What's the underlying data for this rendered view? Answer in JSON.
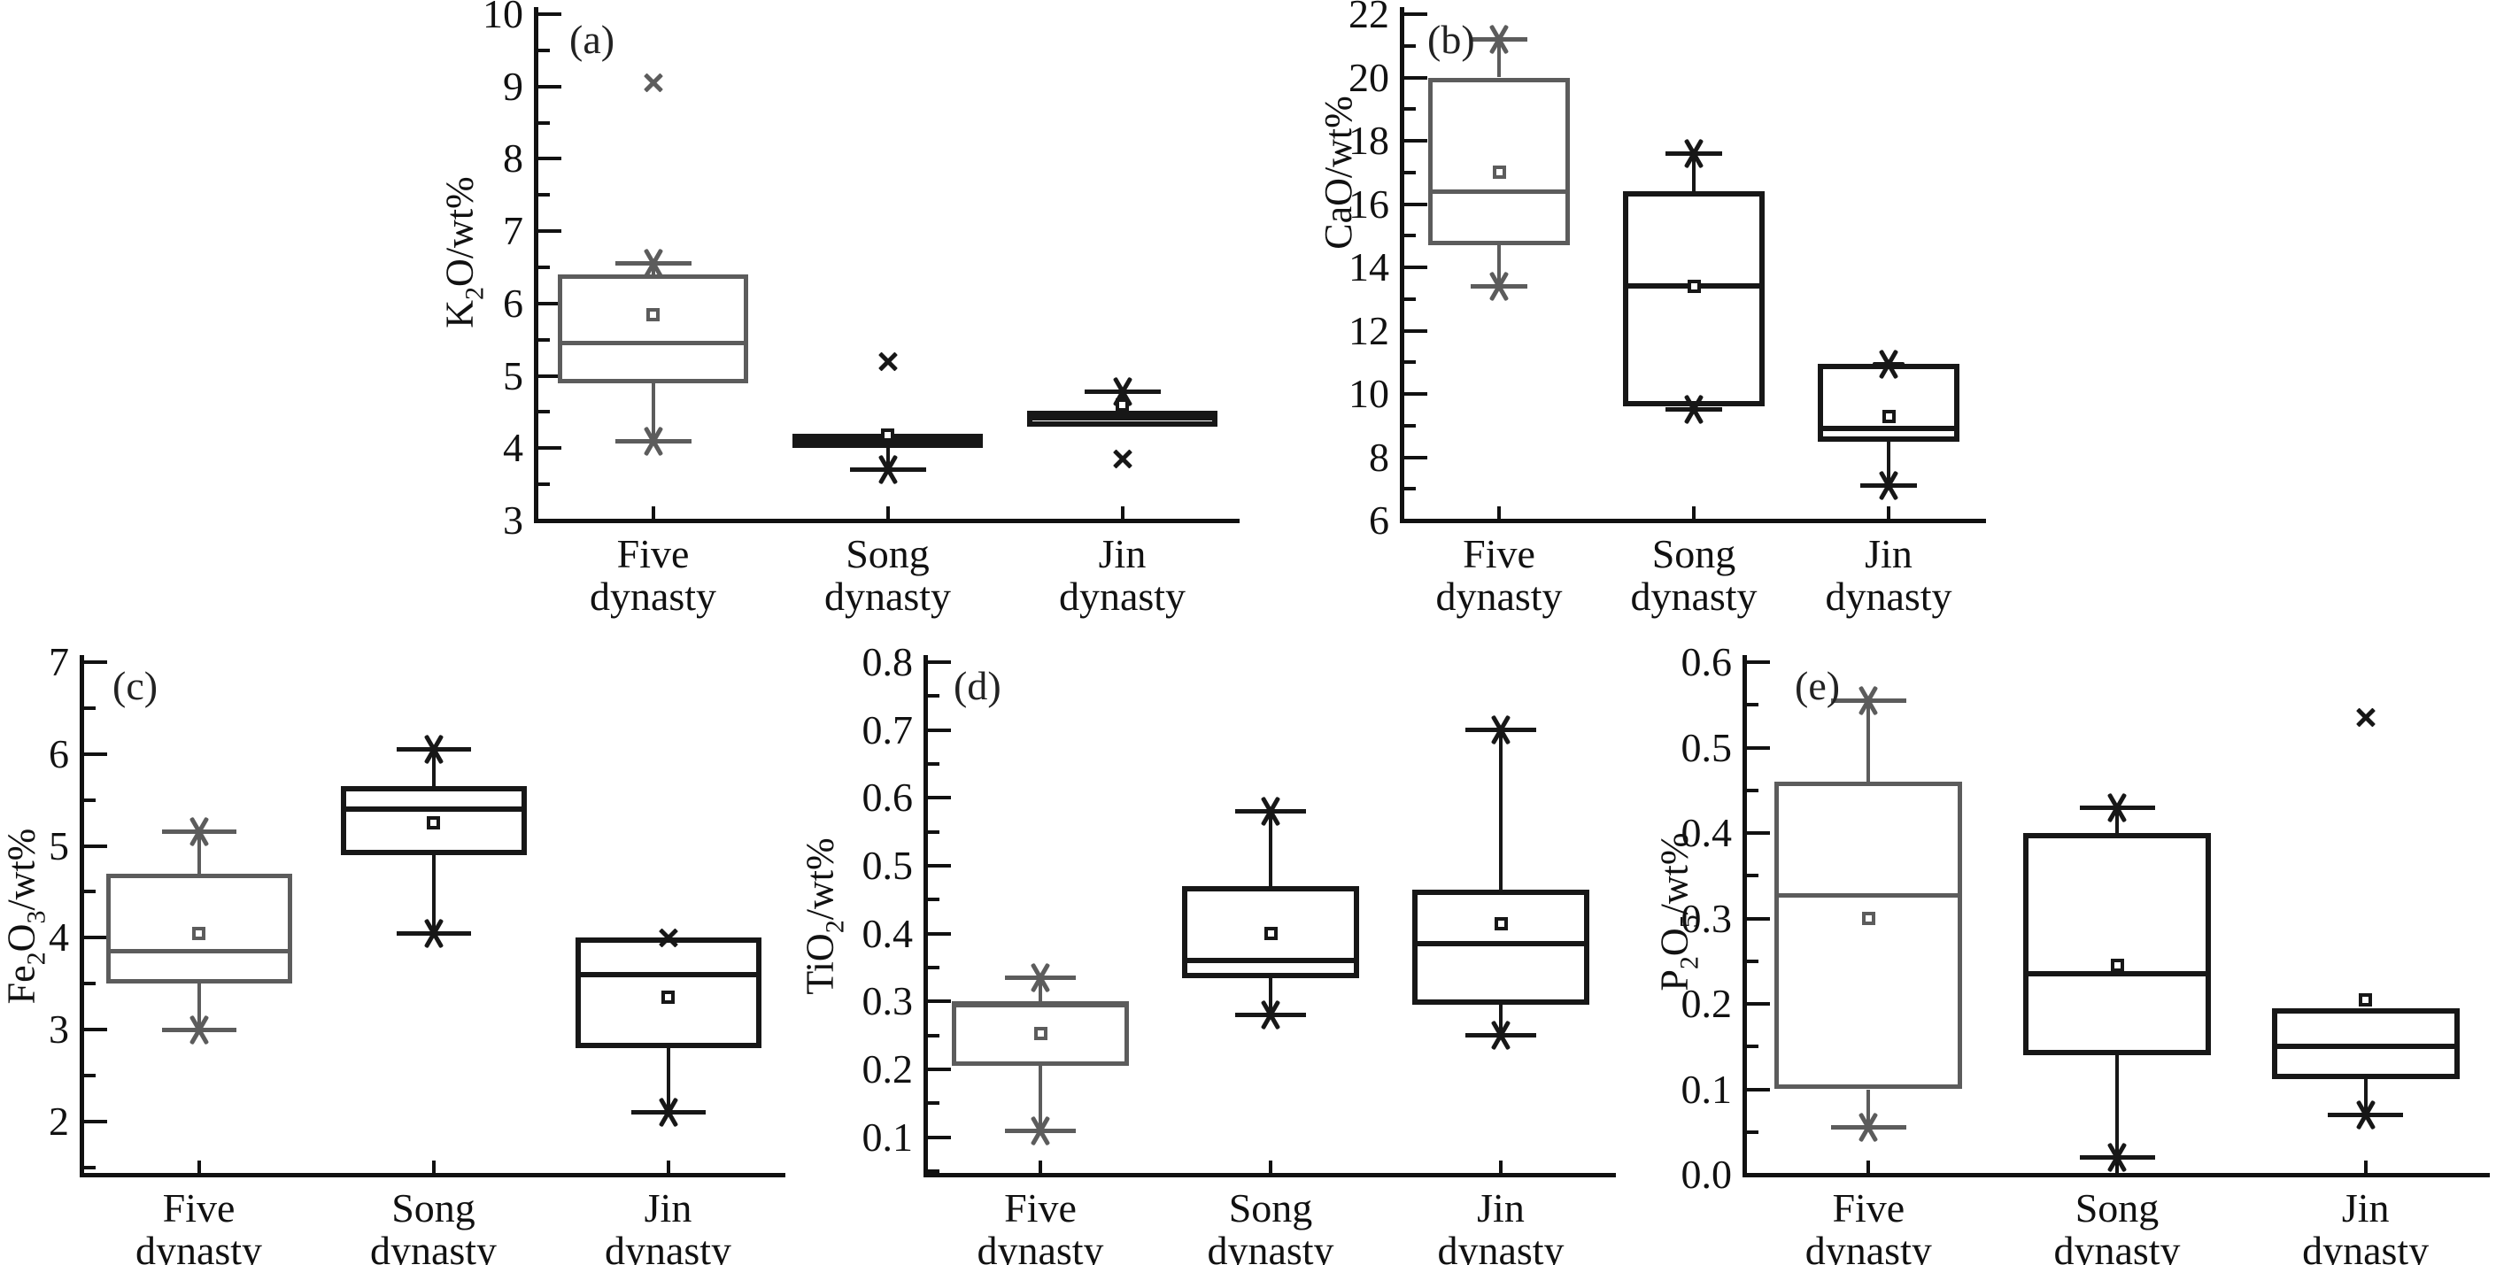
{
  "figure": {
    "background": "#ffffff"
  },
  "chart_data": {
    "type": "box",
    "title": "",
    "grid": false,
    "legend": "none",
    "categories": [
      [
        "Five",
        "dynasty"
      ],
      [
        "Song",
        "dynasty"
      ],
      [
        "Jin",
        "dynasty"
      ]
    ],
    "colors": {
      "five_dynasty_gray": "#5c5c5c",
      "song_jin_black": "#171717",
      "axis": "#111111"
    },
    "panels": [
      {
        "label": "(a)",
        "ylabel_parts": [
          {
            "t": "K"
          },
          {
            "t": "2",
            "sub": true
          },
          {
            "t": "O/wt%"
          }
        ],
        "ylim": [
          3,
          10
        ],
        "ticks": {
          "start": 3,
          "end": 10,
          "step": 1,
          "minor": 0.5,
          "decimals": 0
        },
        "series": [
          {
            "name": "Five dynasty",
            "color": "gray",
            "whislo": 4.1,
            "q1": 4.9,
            "med": 5.45,
            "q3": 6.4,
            "whishi": 6.55,
            "mean": 5.85,
            "outliers": [
              9.05
            ],
            "min_marker": true,
            "max_marker": true
          },
          {
            "name": "Song dynasty",
            "color": "black",
            "whislo": 3.7,
            "q1": 4.0,
            "med": 4.1,
            "q3": 4.2,
            "whishi": 4.2,
            "mean": 4.18,
            "outliers": [
              5.2
            ],
            "min_marker": true,
            "max_marker": false
          },
          {
            "name": "Jin dynasty",
            "color": "black",
            "whislo": 4.3,
            "q1": 4.3,
            "med": 4.42,
            "q3": 4.52,
            "whishi": 4.78,
            "mean": 4.6,
            "outliers": [
              3.85
            ],
            "min_marker": false,
            "max_marker": true
          }
        ]
      },
      {
        "label": "(b)",
        "ylabel_parts": [
          {
            "t": "CaO/wt%"
          }
        ],
        "ylim": [
          6,
          22
        ],
        "ticks": {
          "start": 6,
          "end": 22,
          "step": 2,
          "minor": 1,
          "decimals": 0
        },
        "series": [
          {
            "name": "Five dynasty",
            "color": "gray",
            "whislo": 13.4,
            "q1": 14.7,
            "med": 16.4,
            "q3": 20.0,
            "whishi": 21.2,
            "mean": 17.0,
            "outliers": [],
            "min_marker": true,
            "max_marker": true
          },
          {
            "name": "Song dynasty",
            "color": "black",
            "whislo": 9.5,
            "q1": 9.6,
            "med": 13.4,
            "q3": 16.4,
            "whishi": 17.6,
            "mean": 13.4,
            "outliers": [],
            "min_marker": true,
            "max_marker": true
          },
          {
            "name": "Jin dynasty",
            "color": "black",
            "whislo": 7.1,
            "q1": 8.5,
            "med": 8.9,
            "q3": 10.95,
            "whishi": 10.95,
            "mean": 9.3,
            "outliers": [],
            "min_marker": true,
            "max_marker": true
          }
        ]
      },
      {
        "label": "(c)",
        "ylabel_parts": [
          {
            "t": "Fe"
          },
          {
            "t": "2",
            "sub": true
          },
          {
            "t": "O"
          },
          {
            "t": "3",
            "sub": true
          },
          {
            "t": "/wt%"
          }
        ],
        "ylim": [
          1.42,
          7
        ],
        "ticks": {
          "start": 2,
          "end": 7,
          "step": 1,
          "minor": 0.5,
          "decimals": 0
        },
        "series": [
          {
            "name": "Five dynasty",
            "color": "gray",
            "whislo": 3.0,
            "q1": 3.5,
            "med": 3.85,
            "q3": 4.7,
            "whishi": 5.15,
            "mean": 4.05,
            "outliers": [],
            "min_marker": true,
            "max_marker": true
          },
          {
            "name": "Song dynasty",
            "color": "black",
            "whislo": 4.05,
            "q1": 4.9,
            "med": 5.4,
            "q3": 5.65,
            "whishi": 6.05,
            "mean": 5.25,
            "outliers": [],
            "min_marker": true,
            "max_marker": true
          },
          {
            "name": "Jin dynasty",
            "color": "black",
            "whislo": 2.1,
            "q1": 2.8,
            "med": 3.6,
            "q3": 4.0,
            "whishi": 4.0,
            "mean": 3.35,
            "outliers": [
              4.0
            ],
            "min_marker": true,
            "max_marker": false
          }
        ]
      },
      {
        "label": "(d)",
        "ylabel_parts": [
          {
            "t": "TiO"
          },
          {
            "t": "2",
            "sub": true
          },
          {
            "t": "/wt%"
          }
        ],
        "ylim": [
          0.045,
          0.8
        ],
        "ticks": {
          "start": 0.1,
          "end": 0.8,
          "step": 0.1,
          "minor": 0.05,
          "decimals": 1
        },
        "series": [
          {
            "name": "Five dynasty",
            "color": "gray",
            "whislo": 0.11,
            "q1": 0.205,
            "med": 0.295,
            "q3": 0.3,
            "whishi": 0.335,
            "mean": 0.253,
            "outliers": [],
            "min_marker": true,
            "max_marker": true
          },
          {
            "name": "Song dynasty",
            "color": "black",
            "whislo": 0.28,
            "q1": 0.335,
            "med": 0.36,
            "q3": 0.47,
            "whishi": 0.58,
            "mean": 0.4,
            "outliers": [],
            "min_marker": true,
            "max_marker": true
          },
          {
            "name": "Jin dynasty",
            "color": "black",
            "whislo": 0.25,
            "q1": 0.295,
            "med": 0.385,
            "q3": 0.465,
            "whishi": 0.7,
            "mean": 0.415,
            "outliers": [],
            "min_marker": true,
            "max_marker": true
          }
        ]
      },
      {
        "label": "(e)",
        "ylabel_parts": [
          {
            "t": "P"
          },
          {
            "t": "2",
            "sub": true
          },
          {
            "t": "O"
          },
          {
            "t": "5",
            "sub": true
          },
          {
            "t": "/wt%"
          }
        ],
        "ylim": [
          0.0,
          0.6
        ],
        "ticks": {
          "start": 0.0,
          "end": 0.6,
          "step": 0.1,
          "minor": 0.05,
          "decimals": 1
        },
        "series": [
          {
            "name": "Five dynasty",
            "color": "gray",
            "whislo": 0.055,
            "q1": 0.1,
            "med": 0.327,
            "q3": 0.46,
            "whishi": 0.555,
            "mean": 0.3,
            "outliers": [],
            "min_marker": true,
            "max_marker": true
          },
          {
            "name": "Song dynasty",
            "color": "black",
            "whislo": 0.02,
            "q1": 0.14,
            "med": 0.235,
            "q3": 0.4,
            "whishi": 0.43,
            "mean": 0.245,
            "outliers": [],
            "min_marker": true,
            "max_marker": true
          },
          {
            "name": "Jin dynasty",
            "color": "black",
            "whislo": 0.07,
            "q1": 0.112,
            "med": 0.15,
            "q3": 0.195,
            "whishi": 0.195,
            "mean": 0.205,
            "outliers": [
              0.535
            ],
            "min_marker": true,
            "max_marker": false
          }
        ]
      }
    ]
  }
}
